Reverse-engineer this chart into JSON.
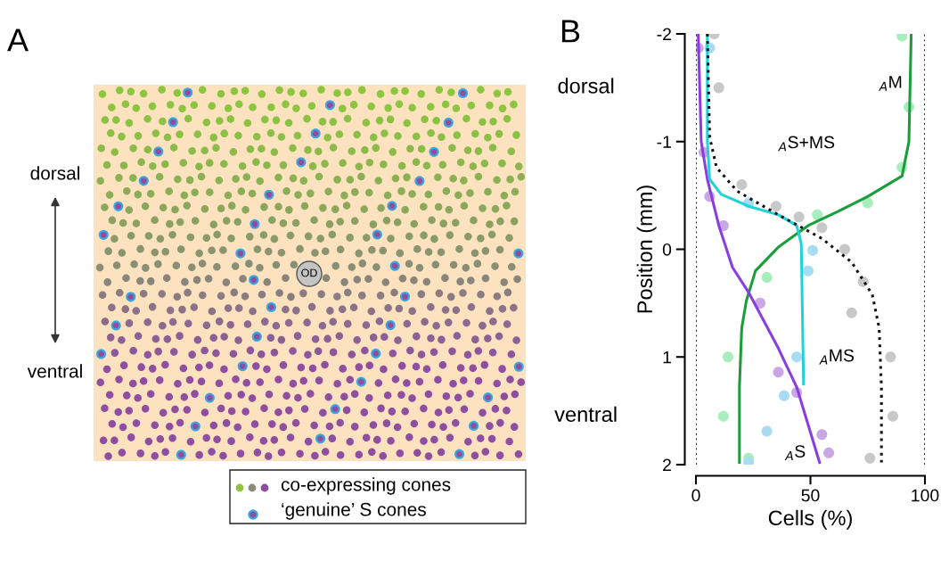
{
  "chart_data": [
    {
      "type": "other",
      "title": "A",
      "annotations": [
        "dorsal",
        "ventral",
        "OD",
        "co-expressing cones",
        "‘genuine’ S cones"
      ]
    },
    {
      "type": "line",
      "title": "B",
      "xlabel": "Cells (%)",
      "ylabel": "Position (mm)",
      "xlim": [
        0,
        100
      ],
      "xticks": [
        0,
        50,
        100
      ],
      "ylim": [
        2,
        -2
      ],
      "yticks": [
        -2,
        -1,
        0,
        1,
        2
      ],
      "grid": false,
      "legend": false,
      "series": [
        {
          "type": "scatter",
          "marker": "circle",
          "color": "#c8c8c8",
          "x": [
            8,
            10,
            20,
            35,
            45,
            55,
            65,
            73,
            68,
            85,
            86,
            76
          ],
          "values": [
            -2,
            -1.5,
            -0.6,
            -0.4,
            -0.3,
            -0.2,
            0,
            0.3,
            0.59,
            1.0,
            1.55,
            1.94
          ]
        },
        {
          "type": "scatter",
          "marker": "circle",
          "color": "#a6eebb",
          "x": [
            90,
            93,
            90,
            75,
            53,
            31,
            14,
            12,
            23
          ],
          "values": [
            -1.98,
            -1.32,
            -0.76,
            -0.43,
            -0.32,
            0.26,
            1.0,
            1.55,
            1.94
          ]
        },
        {
          "type": "scatter",
          "marker": "circle",
          "color": "#c9a6e6",
          "x": [
            1,
            3.5,
            6,
            12,
            28,
            36,
            44,
            55,
            58
          ],
          "values": [
            -1.87,
            -0.9,
            -0.49,
            -0.22,
            0.5,
            1.14,
            1.33,
            1.72,
            1.89
          ]
        },
        {
          "type": "scatter",
          "marker": "circle",
          "color": "#a8dcf2",
          "x": [
            6,
            23,
            51,
            49,
            44,
            38.5,
            31,
            23
          ],
          "values": [
            -1.87,
            -0.43,
            0.01,
            0.2,
            1.0,
            1.36,
            1.69,
            1.98
          ]
        },
        {
          "type": "line",
          "line_style": "solid",
          "color": "#1a9e3a",
          "x": [
            94,
            93,
            90,
            75,
            62,
            49,
            36,
            26,
            22,
            20,
            19,
            19
          ],
          "values": [
            -2,
            -1,
            -0.68,
            -0.49,
            -0.35,
            -0.22,
            -0.02,
            0.2,
            0.48,
            0.73,
            1.28,
            1.98
          ]
        },
        {
          "type": "line",
          "line_style": "solid",
          "color": "#8a3ee0",
          "x": [
            1,
            2.3,
            5,
            10,
            16,
            23,
            36,
            44,
            54
          ],
          "values": [
            -2,
            -1,
            -0.65,
            -0.22,
            0.17,
            0.4,
            0.92,
            1.28,
            1.98
          ]
        },
        {
          "type": "line",
          "line_style": "solid",
          "color": "#1ed4d8",
          "x": [
            5,
            5,
            6,
            11,
            23,
            36,
            44,
            46,
            47
          ],
          "values": [
            -2,
            -1,
            -0.65,
            -0.51,
            -0.4,
            -0.32,
            -0.22,
            -0.05,
            1.25
          ]
        },
        {
          "type": "line",
          "line_style": "dotted",
          "color": "#111111",
          "x": [
            5,
            6,
            9,
            18,
            36,
            55,
            68,
            77,
            80,
            81,
            81
          ],
          "values": [
            -2,
            -1.04,
            -0.76,
            -0.54,
            -0.32,
            -0.1,
            0.12,
            0.42,
            0.73,
            1.28,
            1.98
          ]
        }
      ],
      "ref_lines": [
        {
          "axis": "x",
          "value": 0,
          "color": "#333333",
          "line_style": "dotted"
        },
        {
          "axis": "x",
          "value": 100,
          "color": "#333333",
          "line_style": "dotted"
        }
      ],
      "annotations": [
        "dorsal",
        "ventral",
        "$_{A}$M",
        "$_{A}$S+MS",
        "$_{A}$MS",
        "$_{A}$S"
      ]
    }
  ]
}
